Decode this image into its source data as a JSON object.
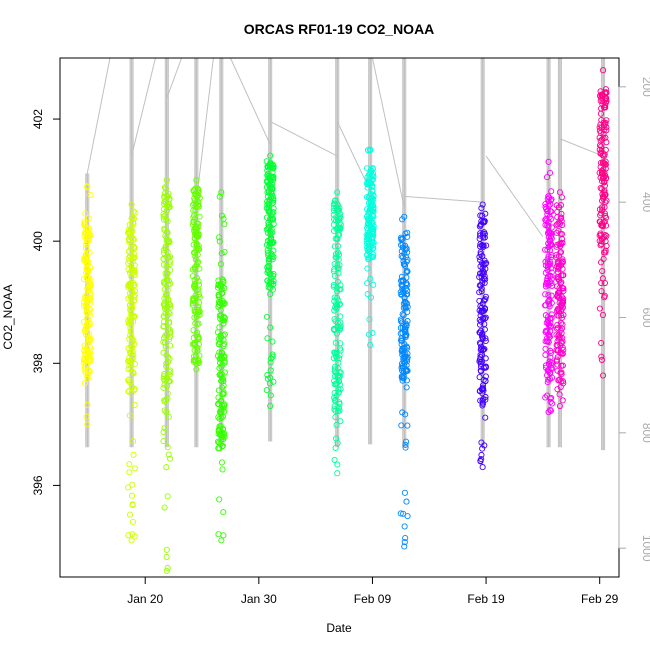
{
  "chart_data": {
    "type": "scatter",
    "title": "ORCAS RF01-19 CO2_NOAA",
    "xlabel": "Date",
    "ylabel": "CO2_NOAA",
    "xlim": [
      12.5,
      61.7
    ],
    "ylim": [
      394.5,
      403.0
    ],
    "x_ticks": [
      {
        "x": 20,
        "label": "Jan 20"
      },
      {
        "x": 30,
        "label": "Jan 30"
      },
      {
        "x": 40,
        "label": "Feb 09"
      },
      {
        "x": 50,
        "label": "Feb 19"
      },
      {
        "x": 60,
        "label": "Feb 29"
      }
    ],
    "y_ticks": [
      396,
      398,
      400,
      402
    ],
    "right_axis": {
      "note": "secondary pressure axis, drawn in grey, increasing downward",
      "lim": [
        1050,
        150
      ],
      "ticks": [
        200,
        400,
        600,
        800,
        1000
      ],
      "color": "#aaaaaa"
    },
    "pressure_trace_color": "#c0c0c0",
    "flights": [
      {
        "x": 14.9,
        "color": "#ffff00",
        "min": 397.0,
        "max": 400.9,
        "dense": [
          [
            397.8,
            400.5
          ]
        ],
        "top_p": 350,
        "bot_p": 825
      },
      {
        "x": 18.8,
        "color": "#ccff00",
        "min": 395.1,
        "max": 400.6,
        "dense": [
          [
            397.5,
            400.5
          ]
        ],
        "top_p": 150,
        "bot_p": 825
      },
      {
        "x": 21.9,
        "color": "#99ff00",
        "min": 394.6,
        "max": 401.0,
        "dense": [
          [
            397.6,
            400.9
          ]
        ],
        "top_p": 150,
        "bot_p": 825
      },
      {
        "x": 24.5,
        "color": "#66ff00",
        "min": 397.9,
        "max": 401.0,
        "dense": [
          [
            398.0,
            400.9
          ]
        ],
        "top_p": 150,
        "bot_p": 825
      },
      {
        "x": 26.7,
        "color": "#33ff00",
        "min": 395.1,
        "max": 400.8,
        "dense": [
          [
            396.6,
            399.4
          ]
        ],
        "top_p": 150,
        "bot_p": 825
      },
      {
        "x": 31.0,
        "color": "#00ff33",
        "min": 397.3,
        "max": 401.4,
        "dense": [
          [
            399.2,
            401.3
          ]
        ],
        "top_p": 150,
        "bot_p": 815
      },
      {
        "x": 36.9,
        "color": "#00ff99",
        "min": 396.2,
        "max": 400.8,
        "dense": [
          [
            397.2,
            400.7
          ]
        ],
        "top_p": 150,
        "bot_p": 825
      },
      {
        "x": 39.8,
        "color": "#00ffdd",
        "min": 398.3,
        "max": 401.5,
        "dense": [
          [
            399.7,
            401.2
          ]
        ],
        "top_p": 150,
        "bot_p": 820
      },
      {
        "x": 42.8,
        "color": "#0088ff",
        "min": 395.0,
        "max": 400.4,
        "dense": [
          [
            397.7,
            400.1
          ]
        ],
        "top_p": 150,
        "bot_p": 825
      },
      {
        "x": 49.7,
        "color": "#4400ff",
        "min": 396.3,
        "max": 400.6,
        "dense": [
          [
            397.3,
            400.5
          ]
        ],
        "top_p": 150,
        "bot_p": 825
      },
      {
        "x": 55.5,
        "color": "#ff00ff",
        "min": 397.2,
        "max": 401.3,
        "dense": [
          [
            397.7,
            400.8
          ]
        ],
        "top_p": 150,
        "bot_p": 825
      },
      {
        "x": 56.5,
        "color": "#ff00cc",
        "min": 397.3,
        "max": 400.8,
        "dense": [
          [
            397.6,
            400.6
          ]
        ],
        "top_p": 150,
        "bot_p": 825
      },
      {
        "x": 60.3,
        "color": "#ff0088",
        "min": 397.8,
        "max": 402.8,
        "dense": [
          [
            399.8,
            402.5
          ]
        ],
        "top_p": 150,
        "bot_p": 830
      }
    ],
    "pressure_connectors": [
      {
        "x1": 14.9,
        "p1": 350,
        "x2": 16.9,
        "p2": 150
      },
      {
        "x1": 18.8,
        "p1": 320,
        "x2": 20.9,
        "p2": 150
      },
      {
        "x1": 21.9,
        "p1": 220,
        "x2": 23.2,
        "p2": 150
      },
      {
        "x1": 24.5,
        "p1": 400,
        "x2": 26.0,
        "p2": 150
      },
      {
        "x1": 27.5,
        "p1": 150,
        "x2": 31.0,
        "p2": 300
      },
      {
        "x1": 31.0,
        "p1": 260,
        "x2": 36.9,
        "p2": 320
      },
      {
        "x1": 36.9,
        "p1": 260,
        "x2": 39.8,
        "p2": 380
      },
      {
        "x1": 40.0,
        "p1": 150,
        "x2": 42.8,
        "p2": 410
      },
      {
        "x1": 42.8,
        "p1": 390,
        "x2": 49.7,
        "p2": 400
      },
      {
        "x1": 50.0,
        "p1": 320,
        "x2": 55.0,
        "p2": 460
      },
      {
        "x1": 56.5,
        "p1": 290,
        "x2": 60.3,
        "p2": 320
      }
    ]
  }
}
